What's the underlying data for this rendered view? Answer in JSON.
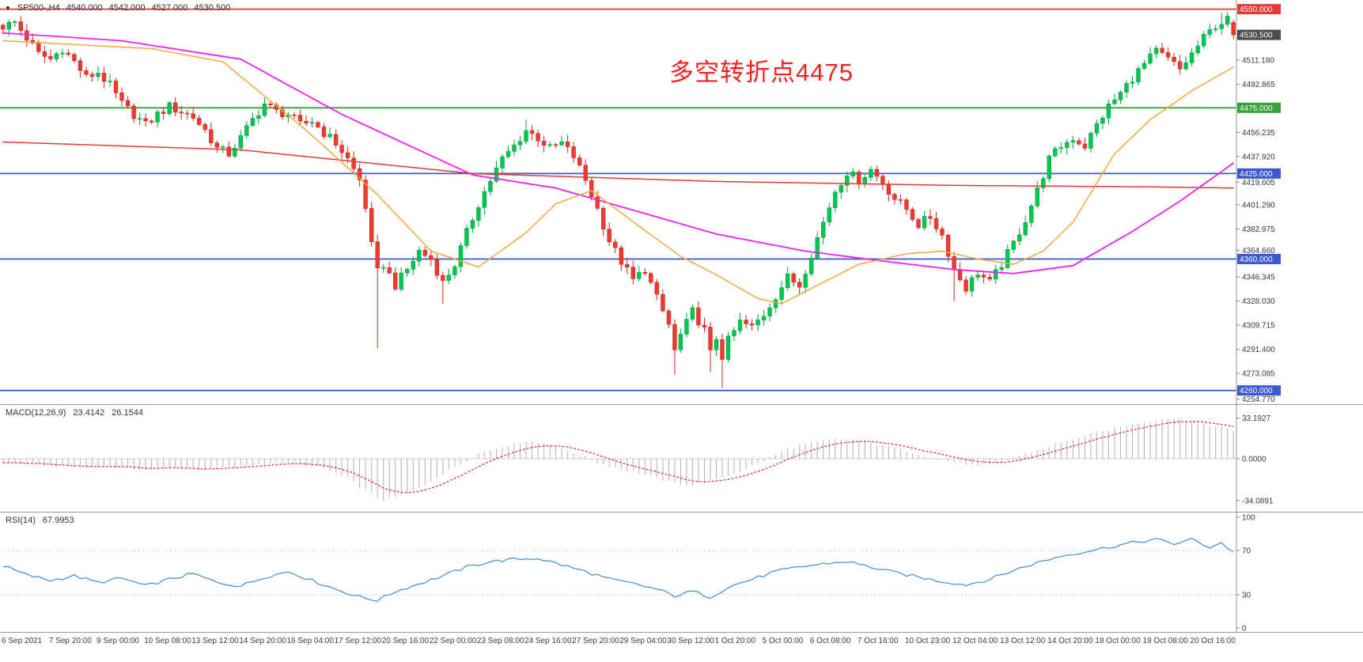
{
  "header": {
    "collapse_icon": "triangle-down",
    "symbol": "SP500-,H4",
    "open": "4540.000",
    "high": "4542.000",
    "low": "4527.000",
    "close": "4530.500"
  },
  "annotation": {
    "text": "多空转折点4475",
    "color": "#ff1e1e"
  },
  "macd_panel": {
    "label": "MACD(12,26,9)",
    "value_main": "23.4142",
    "value_signal": "26.1544"
  },
  "rsi_panel": {
    "label": "RSI(14)",
    "value": "67.9953"
  },
  "chart_data": {
    "type": "candlestick",
    "symbol": "SP500-",
    "timeframe": "H4",
    "bars": 208,
    "bars_per_label": 8,
    "ylim": [
      4249,
      4557
    ],
    "x_labels": [
      "6 Sep 2021",
      "7 Sep 20:00",
      "9 Sep 00:00",
      "10 Sep 08:00",
      "13 Sep 12:00",
      "14 Sep 20:00",
      "16 Sep 04:00",
      "17 Sep 12:00",
      "20 Sep 16:00",
      "22 Sep 00:00",
      "23 Sep 08:00",
      "24 Sep 16:00",
      "27 Sep 20:00",
      "29 Sep 04:00",
      "30 Sep 12:00",
      "1 Oct 20:00",
      "5 Oct 00:00",
      "6 Oct 08:00",
      "7 Oct 16:00",
      "10 Oct 23:00",
      "12 Oct 04:00",
      "13 Oct 12:00",
      "14 Oct 20:00",
      "18 Oct 00:00",
      "19 Oct 08:00",
      "20 Oct 16:00"
    ],
    "close_path": [
      [
        0,
        4537
      ],
      [
        2,
        4540
      ],
      [
        4,
        4528
      ],
      [
        6,
        4516
      ],
      [
        8,
        4512
      ],
      [
        10,
        4520
      ],
      [
        12,
        4510
      ],
      [
        14,
        4498
      ],
      [
        16,
        4502
      ],
      [
        18,
        4492
      ],
      [
        20,
        4478
      ],
      [
        22,
        4470
      ],
      [
        24,
        4462
      ],
      [
        26,
        4470
      ],
      [
        28,
        4476
      ],
      [
        30,
        4472
      ],
      [
        32,
        4468
      ],
      [
        34,
        4458
      ],
      [
        36,
        4444
      ],
      [
        38,
        4440
      ],
      [
        40,
        4452
      ],
      [
        42,
        4466
      ],
      [
        44,
        4478
      ],
      [
        46,
        4472
      ],
      [
        48,
        4470
      ],
      [
        50,
        4462
      ],
      [
        52,
        4465
      ],
      [
        54,
        4456
      ],
      [
        56,
        4448
      ],
      [
        58,
        4436
      ],
      [
        60,
        4420
      ],
      [
        61,
        4400
      ],
      [
        62,
        4370
      ],
      [
        63,
        4350
      ],
      [
        64,
        4356
      ],
      [
        66,
        4340
      ],
      [
        68,
        4352
      ],
      [
        70,
        4366
      ],
      [
        72,
        4360
      ],
      [
        74,
        4342
      ],
      [
        76,
        4356
      ],
      [
        78,
        4380
      ],
      [
        80,
        4402
      ],
      [
        82,
        4420
      ],
      [
        84,
        4436
      ],
      [
        86,
        4446
      ],
      [
        88,
        4458
      ],
      [
        90,
        4452
      ],
      [
        92,
        4444
      ],
      [
        94,
        4448
      ],
      [
        96,
        4438
      ],
      [
        98,
        4420
      ],
      [
        100,
        4398
      ],
      [
        102,
        4374
      ],
      [
        104,
        4358
      ],
      [
        106,
        4344
      ],
      [
        108,
        4352
      ],
      [
        110,
        4330
      ],
      [
        112,
        4310
      ],
      [
        113,
        4290
      ],
      [
        114,
        4302
      ],
      [
        116,
        4320
      ],
      [
        118,
        4306
      ],
      [
        119,
        4288
      ],
      [
        120,
        4300
      ],
      [
        121,
        4286
      ],
      [
        122,
        4298
      ],
      [
        124,
        4312
      ],
      [
        126,
        4308
      ],
      [
        128,
        4318
      ],
      [
        130,
        4332
      ],
      [
        132,
        4346
      ],
      [
        134,
        4340
      ],
      [
        136,
        4364
      ],
      [
        138,
        4388
      ],
      [
        140,
        4412
      ],
      [
        142,
        4426
      ],
      [
        144,
        4420
      ],
      [
        146,
        4428
      ],
      [
        148,
        4418
      ],
      [
        150,
        4406
      ],
      [
        152,
        4398
      ],
      [
        154,
        4386
      ],
      [
        156,
        4392
      ],
      [
        158,
        4378
      ],
      [
        160,
        4352
      ],
      [
        162,
        4338
      ],
      [
        164,
        4350
      ],
      [
        166,
        4342
      ],
      [
        168,
        4356
      ],
      [
        170,
        4372
      ],
      [
        172,
        4390
      ],
      [
        174,
        4412
      ],
      [
        176,
        4436
      ],
      [
        178,
        4446
      ],
      [
        180,
        4452
      ],
      [
        182,
        4446
      ],
      [
        184,
        4462
      ],
      [
        186,
        4476
      ],
      [
        188,
        4486
      ],
      [
        190,
        4498
      ],
      [
        192,
        4508
      ],
      [
        194,
        4518
      ],
      [
        196,
        4512
      ],
      [
        198,
        4504
      ],
      [
        200,
        4516
      ],
      [
        202,
        4528
      ],
      [
        204,
        4538
      ],
      [
        206,
        4542
      ],
      [
        207,
        4530.5
      ]
    ],
    "long_wicks": [
      {
        "bar": 63,
        "low": 4292
      },
      {
        "bar": 74,
        "low": 4326
      },
      {
        "bar": 113,
        "low": 4272
      },
      {
        "bar": 119,
        "low": 4274
      },
      {
        "bar": 121,
        "low": 4262
      },
      {
        "bar": 160,
        "low": 4328
      },
      {
        "bar": 44,
        "high": 4483
      },
      {
        "bar": 88,
        "high": 4466
      },
      {
        "bar": 205,
        "high": 4547
      }
    ],
    "last_bar": {
      "open": 4540.0,
      "high": 4542.0,
      "low": 4527.0,
      "close": 4530.5
    },
    "last_close": 4530.5,
    "candle_colors": {
      "up": "#00c751",
      "up_stroke": "#00a33e",
      "down": "#ef3a2d",
      "down_stroke": "#c62b20"
    },
    "moving_averages": [
      {
        "name": "ma-slow-red",
        "color": "#e53935",
        "width": 1.5,
        "path": [
          [
            0,
            4449
          ],
          [
            40,
            4443
          ],
          [
            79,
            4425
          ],
          [
            120,
            4419
          ],
          [
            160,
            4416
          ],
          [
            190,
            4415
          ],
          [
            207,
            4414
          ]
        ]
      },
      {
        "name": "ma-mid-magenta",
        "color": "#ee22ee",
        "width": 1.8,
        "path": [
          [
            0,
            4532
          ],
          [
            20,
            4526
          ],
          [
            40,
            4512
          ],
          [
            57,
            4470
          ],
          [
            79,
            4424
          ],
          [
            93,
            4414
          ],
          [
            110,
            4392
          ],
          [
            120,
            4379
          ],
          [
            135,
            4366
          ],
          [
            147,
            4359
          ],
          [
            160,
            4352
          ],
          [
            170,
            4349
          ],
          [
            180,
            4355
          ],
          [
            190,
            4381
          ],
          [
            198,
            4404
          ],
          [
            207,
            4433
          ]
        ]
      },
      {
        "name": "ma-fast-orange",
        "color": "#f2a93b",
        "width": 1.5,
        "path": [
          [
            0,
            4526
          ],
          [
            25,
            4520
          ],
          [
            37,
            4510
          ],
          [
            51,
            4458
          ],
          [
            63,
            4409
          ],
          [
            72,
            4366
          ],
          [
            80,
            4354
          ],
          [
            88,
            4380
          ],
          [
            93,
            4402
          ],
          [
            99,
            4412
          ],
          [
            107,
            4385
          ],
          [
            114,
            4362
          ],
          [
            120,
            4348
          ],
          [
            127,
            4330
          ],
          [
            131,
            4326
          ],
          [
            137,
            4340
          ],
          [
            144,
            4356
          ],
          [
            152,
            4364
          ],
          [
            158,
            4366
          ],
          [
            164,
            4360
          ],
          [
            170,
            4356
          ],
          [
            175,
            4366
          ],
          [
            180,
            4388
          ],
          [
            187,
            4440
          ],
          [
            193,
            4466
          ],
          [
            200,
            4488
          ],
          [
            207,
            4506
          ]
        ]
      }
    ],
    "hlines": [
      {
        "value": 4550.0,
        "label": "4550.000",
        "color": "#e53935"
      },
      {
        "value": 4475.0,
        "label": "4475.000",
        "color": "#39a13c"
      },
      {
        "value": 4425.0,
        "label": "4425.000",
        "color": "#3c59d1"
      },
      {
        "value": 4360.0,
        "label": "4360.000",
        "color": "#3c59d1"
      },
      {
        "value": 4260.0,
        "label": "4260.000",
        "color": "#3c59d1"
      }
    ],
    "current_price": {
      "value": 4530.5,
      "label": "4530.500",
      "badge_color": "#4a4a4a"
    },
    "y_ticks": [
      "4511.180",
      "4492.865",
      "4456.235",
      "4437.920",
      "4419.605",
      "4401.290",
      "4382.975",
      "4364.660",
      "4346.345",
      "4328.030",
      "4309.715",
      "4291.400",
      "4273.085",
      "4254.770"
    ],
    "macd": {
      "range": [
        -40,
        40
      ],
      "hist_color": "#b8b8b8",
      "signal_color": "#e03030",
      "hist_path": [
        [
          0,
          -3
        ],
        [
          6,
          -5
        ],
        [
          12,
          -7
        ],
        [
          18,
          -6
        ],
        [
          24,
          -9
        ],
        [
          28,
          -7
        ],
        [
          34,
          -9
        ],
        [
          40,
          -6
        ],
        [
          46,
          -3
        ],
        [
          50,
          -4
        ],
        [
          54,
          -8
        ],
        [
          58,
          -16
        ],
        [
          61,
          -26
        ],
        [
          64,
          -34
        ],
        [
          68,
          -29
        ],
        [
          72,
          -18
        ],
        [
          76,
          -7
        ],
        [
          80,
          4
        ],
        [
          84,
          10
        ],
        [
          88,
          14
        ],
        [
          92,
          12
        ],
        [
          96,
          5
        ],
        [
          100,
          -3
        ],
        [
          104,
          -9
        ],
        [
          108,
          -13
        ],
        [
          112,
          -19
        ],
        [
          116,
          -22
        ],
        [
          120,
          -17
        ],
        [
          124,
          -10
        ],
        [
          128,
          -2
        ],
        [
          132,
          8
        ],
        [
          136,
          13
        ],
        [
          140,
          16
        ],
        [
          144,
          15
        ],
        [
          148,
          11
        ],
        [
          152,
          6
        ],
        [
          156,
          2
        ],
        [
          160,
          -3
        ],
        [
          164,
          -6
        ],
        [
          168,
          -3
        ],
        [
          172,
          4
        ],
        [
          176,
          10
        ],
        [
          180,
          16
        ],
        [
          184,
          21
        ],
        [
          188,
          26
        ],
        [
          192,
          30
        ],
        [
          196,
          33
        ],
        [
          200,
          31
        ],
        [
          203,
          27
        ],
        [
          207,
          23.4
        ]
      ],
      "ticks": [
        {
          "v": 33.1927,
          "label": "33.1927"
        },
        {
          "v": 0,
          "label": "0.0000"
        },
        {
          "v": -34.0891,
          "label": "-34.0891"
        }
      ]
    },
    "rsi": {
      "range": [
        0,
        100
      ],
      "color": "#3e8ed6",
      "levels": [
        70,
        30
      ],
      "path": [
        [
          0,
          56
        ],
        [
          4,
          48
        ],
        [
          8,
          43
        ],
        [
          12,
          47
        ],
        [
          16,
          41
        ],
        [
          20,
          45
        ],
        [
          24,
          38
        ],
        [
          28,
          44
        ],
        [
          32,
          49
        ],
        [
          36,
          41
        ],
        [
          40,
          38
        ],
        [
          44,
          46
        ],
        [
          48,
          51
        ],
        [
          52,
          43
        ],
        [
          56,
          35
        ],
        [
          60,
          28
        ],
        [
          63,
          25
        ],
        [
          66,
          33
        ],
        [
          70,
          40
        ],
        [
          74,
          47
        ],
        [
          78,
          55
        ],
        [
          82,
          60
        ],
        [
          86,
          62
        ],
        [
          90,
          63
        ],
        [
          94,
          57
        ],
        [
          98,
          51
        ],
        [
          102,
          44
        ],
        [
          106,
          40
        ],
        [
          110,
          35
        ],
        [
          113,
          29
        ],
        [
          116,
          33
        ],
        [
          119,
          28
        ],
        [
          122,
          37
        ],
        [
          126,
          44
        ],
        [
          130,
          51
        ],
        [
          134,
          55
        ],
        [
          138,
          58
        ],
        [
          142,
          60
        ],
        [
          146,
          55
        ],
        [
          150,
          50
        ],
        [
          154,
          46
        ],
        [
          158,
          42
        ],
        [
          162,
          39
        ],
        [
          166,
          44
        ],
        [
          170,
          52
        ],
        [
          174,
          59
        ],
        [
          178,
          65
        ],
        [
          182,
          69
        ],
        [
          186,
          73
        ],
        [
          190,
          77
        ],
        [
          194,
          80
        ],
        [
          197,
          76
        ],
        [
          200,
          80
        ],
        [
          203,
          73
        ],
        [
          205,
          77
        ],
        [
          207,
          68
        ]
      ],
      "ticks": [
        {
          "v": 100,
          "label": "100"
        },
        {
          "v": 70,
          "label": "70"
        },
        {
          "v": 30,
          "label": "30"
        },
        {
          "v": 0,
          "label": "0"
        }
      ]
    }
  }
}
